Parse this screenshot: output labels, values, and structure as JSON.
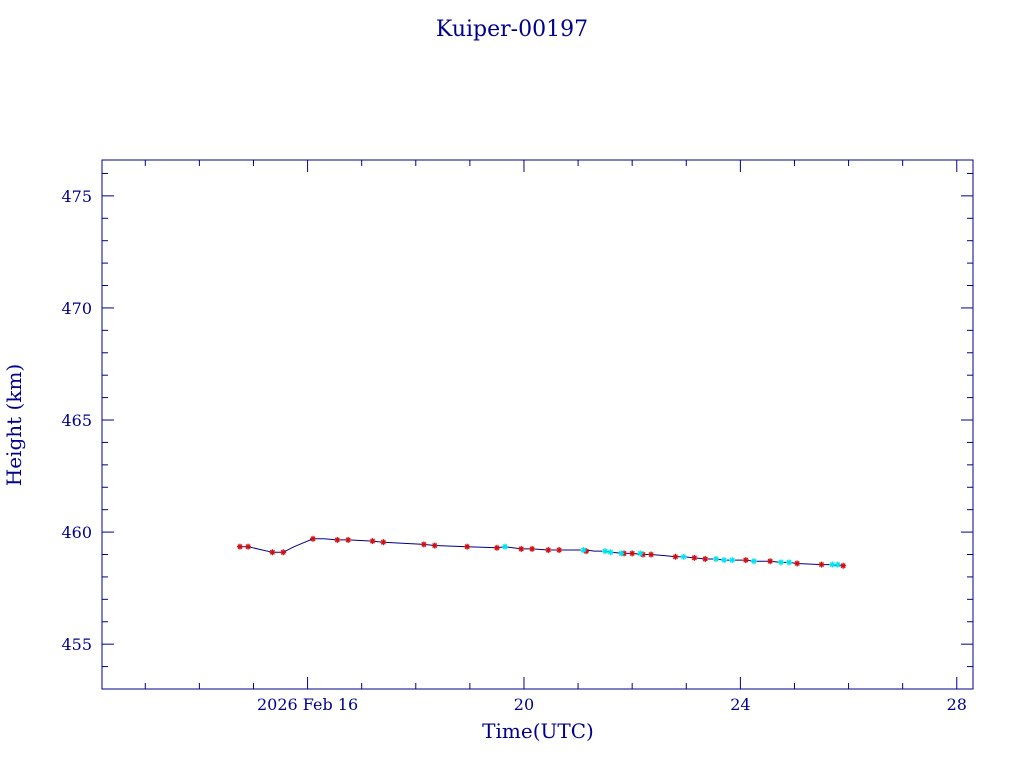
{
  "chart_data": {
    "type": "line",
    "title": "Kuiper-00197",
    "xlabel": "Time(UTC)",
    "ylabel": "Height (km)",
    "x_unit": "days in Feb 2026",
    "xlim": [
      12.2,
      28.3
    ],
    "ylim": [
      453.0,
      476.6
    ],
    "x_ticks": [
      {
        "value": 16,
        "label": "2026 Feb 16"
      },
      {
        "value": 20,
        "label": "20"
      },
      {
        "value": 24,
        "label": "24"
      },
      {
        "value": 28,
        "label": "28"
      }
    ],
    "y_ticks": [
      {
        "value": 455,
        "label": "455"
      },
      {
        "value": 460,
        "label": "460"
      },
      {
        "value": 465,
        "label": "465"
      },
      {
        "value": 470,
        "label": "470"
      },
      {
        "value": 475,
        "label": "475"
      }
    ],
    "colors": {
      "frame": "#00008b",
      "line": "#00008b",
      "marker_primary": "#d01010",
      "marker_secondary": "#00e5ee"
    },
    "line": {
      "x": [
        14.75,
        14.9,
        15.35,
        15.55,
        15.75,
        15.9,
        16.1,
        16.3,
        16.55,
        16.75,
        17.2,
        17.4,
        18.15,
        18.35,
        18.95,
        19.5,
        19.65,
        19.95,
        20.15,
        20.45,
        20.65,
        21.15,
        21.3,
        21.5,
        21.6,
        21.85,
        22.0,
        22.2,
        22.35,
        22.6,
        22.8,
        22.95,
        23.15,
        23.35,
        23.55,
        23.7,
        23.85,
        24.1,
        24.25,
        24.55,
        24.75,
        24.9,
        25.05,
        25.5,
        25.7,
        25.8,
        25.9
      ],
      "y": [
        459.35,
        459.35,
        459.1,
        459.1,
        459.35,
        459.5,
        459.7,
        459.7,
        459.65,
        459.65,
        459.6,
        459.55,
        459.45,
        459.4,
        459.35,
        459.3,
        459.35,
        459.25,
        459.25,
        459.2,
        459.2,
        459.2,
        459.15,
        459.15,
        459.1,
        459.05,
        459.05,
        459.0,
        459.0,
        458.95,
        458.9,
        458.9,
        458.85,
        458.8,
        458.8,
        458.75,
        458.75,
        458.75,
        458.7,
        458.7,
        458.65,
        458.65,
        458.6,
        458.55,
        458.55,
        458.5,
        458.5
      ]
    },
    "series": [
      {
        "marker": "star",
        "color": "#d01010",
        "x": [
          14.75,
          14.9,
          15.35,
          15.55,
          16.1,
          16.55,
          16.75,
          17.2,
          17.4,
          18.15,
          18.35,
          18.95,
          19.5,
          19.95,
          20.15,
          20.45,
          20.65,
          21.15,
          21.85,
          22.0,
          22.2,
          22.35,
          22.8,
          23.15,
          23.35,
          24.1,
          24.55,
          25.05,
          25.5,
          25.9
        ],
        "y": [
          459.35,
          459.35,
          459.1,
          459.1,
          459.7,
          459.65,
          459.65,
          459.6,
          459.55,
          459.45,
          459.4,
          459.35,
          459.3,
          459.25,
          459.25,
          459.2,
          459.2,
          459.15,
          459.05,
          459.05,
          459.0,
          459.0,
          458.9,
          458.85,
          458.8,
          458.75,
          458.7,
          458.6,
          458.55,
          458.5
        ]
      },
      {
        "marker": "star",
        "color": "#00e5ee",
        "x": [
          19.65,
          21.1,
          21.5,
          21.6,
          21.8,
          22.15,
          22.95,
          23.55,
          23.7,
          23.85,
          24.25,
          24.75,
          24.9,
          25.7,
          25.8
        ],
        "y": [
          459.35,
          459.2,
          459.15,
          459.1,
          459.05,
          459.05,
          458.9,
          458.8,
          458.75,
          458.75,
          458.7,
          458.65,
          458.65,
          458.55,
          458.55
        ]
      }
    ]
  }
}
